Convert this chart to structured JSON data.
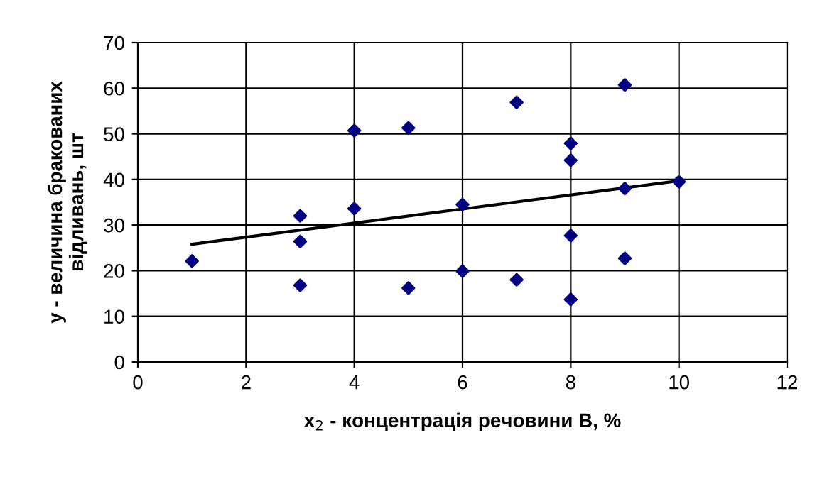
{
  "chart_data": {
    "type": "scatter",
    "xlabel": "x$_{2}$ - концентрація речовини В, %",
    "ylabel": "y - величина бракованих\nвідливань, шт",
    "xlim": [
      0,
      12
    ],
    "ylim": [
      0,
      70
    ],
    "xticks": [
      0,
      2,
      4,
      6,
      8,
      10,
      12
    ],
    "yticks": [
      0,
      10,
      20,
      30,
      40,
      50,
      60,
      70
    ],
    "grid": true,
    "legend": false,
    "series": [
      {
        "color": "#000080",
        "marker": "diamond",
        "x": [
          1,
          3,
          3,
          3,
          4,
          4,
          5,
          5,
          6,
          6,
          7,
          7,
          8,
          8,
          8,
          8,
          9,
          9,
          9,
          10
        ],
        "values": [
          22.1,
          32,
          26.4,
          16.8,
          50.7,
          33.6,
          51.3,
          16.2,
          34.5,
          19.9,
          56.9,
          18,
          47.9,
          44.2,
          27.7,
          13.7,
          60.7,
          38,
          22.7,
          39.5
        ]
      },
      {
        "type": "line",
        "color": "#000000",
        "marker": "none",
        "line_style": "solid",
        "x": [
          1,
          10
        ],
        "values": [
          25.8,
          39.7
        ]
      }
    ]
  }
}
